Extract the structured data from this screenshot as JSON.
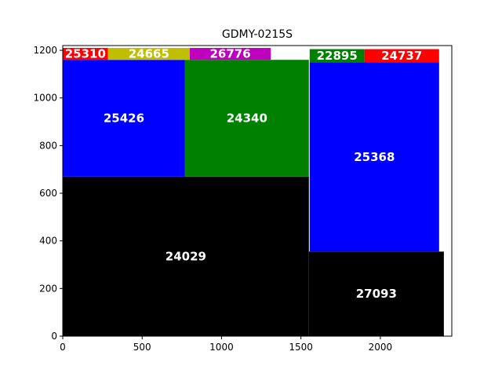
{
  "chart_data": {
    "type": "treemap",
    "title": "GDMY-0215S",
    "xlabel": "",
    "ylabel": "",
    "xlim": [
      0,
      2450
    ],
    "ylim": [
      0,
      1220
    ],
    "xticks": [
      0,
      500,
      1000,
      1500,
      2000
    ],
    "yticks": [
      0,
      200,
      400,
      600,
      800,
      1000,
      1200
    ],
    "grid": false,
    "rects": [
      {
        "label": "24029",
        "x0": 0,
        "y0": 0,
        "x1": 1550,
        "y1": 670,
        "color": "#000000"
      },
      {
        "label": "27093",
        "x0": 1550,
        "y0": 0,
        "x1": 2400,
        "y1": 355,
        "color": "#000000"
      },
      {
        "label": "25426",
        "x0": 0,
        "y0": 670,
        "x1": 770,
        "y1": 1160,
        "color": "#0000ff"
      },
      {
        "label": "24340",
        "x0": 770,
        "y0": 670,
        "x1": 1550,
        "y1": 1160,
        "color": "#008000"
      },
      {
        "label": "25368",
        "x0": 1555,
        "y0": 355,
        "x1": 2370,
        "y1": 1150,
        "color": "#0000ff"
      },
      {
        "label": "25310",
        "x0": 0,
        "y0": 1160,
        "x1": 285,
        "y1": 1210,
        "color": "#ff0000"
      },
      {
        "label": "24665",
        "x0": 285,
        "y0": 1160,
        "x1": 800,
        "y1": 1210,
        "color": "#bfbf00"
      },
      {
        "label": "26776",
        "x0": 800,
        "y0": 1160,
        "x1": 1310,
        "y1": 1210,
        "color": "#bf00bf"
      },
      {
        "label": "22895",
        "x0": 1555,
        "y0": 1150,
        "x1": 1900,
        "y1": 1205,
        "color": "#008000"
      },
      {
        "label": "24737",
        "x0": 1900,
        "y0": 1150,
        "x1": 2370,
        "y1": 1205,
        "color": "#ff0000"
      }
    ]
  }
}
